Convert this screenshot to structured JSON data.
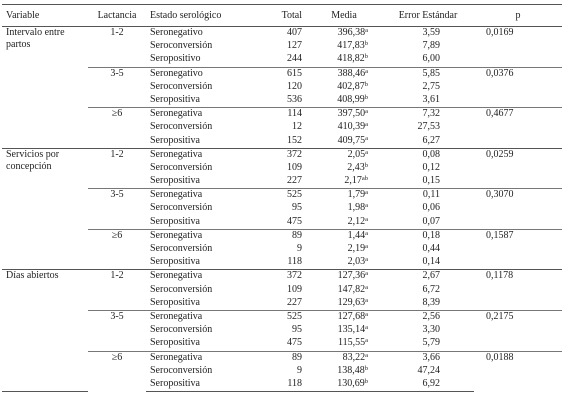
{
  "header": [
    "Variable",
    "Lactancia",
    "Estado serológico",
    "Total",
    "Media",
    "Error Estándar",
    "p"
  ],
  "groups": [
    {
      "variable": "Intervalo entre partos",
      "blocks": [
        {
          "lactancia": "1-2",
          "p": "0,0169",
          "rows": [
            {
              "estado": "Seronegativo",
              "total": 407,
              "media": "396,38",
              "sup": "a",
              "error": "3,59"
            },
            {
              "estado": "Seroconversión",
              "total": 127,
              "media": "417,83",
              "sup": "b",
              "error": "7,89"
            },
            {
              "estado": "Seropositivo",
              "total": 244,
              "media": "418,82",
              "sup": "b",
              "error": "6,00"
            }
          ]
        },
        {
          "lactancia": "3-5",
          "p": "0,0376",
          "rows": [
            {
              "estado": "Seronegativo",
              "total": 615,
              "media": "388,46",
              "sup": "a",
              "error": "5,85"
            },
            {
              "estado": "Seroconversión",
              "total": 120,
              "media": "402,87",
              "sup": "b",
              "error": "2,75"
            },
            {
              "estado": "Seropositiva",
              "total": 536,
              "media": "408,99",
              "sup": "b",
              "error": "3,61"
            }
          ]
        },
        {
          "lactancia": "≥6",
          "p": "0,4677",
          "rows": [
            {
              "estado": "Seronegativa",
              "total": 114,
              "media": "397,50",
              "sup": "a",
              "error": "7,32"
            },
            {
              "estado": "Seroconversión",
              "total": 12,
              "media": "410,39",
              "sup": "a",
              "error": "27,53"
            },
            {
              "estado": "Seropositiva",
              "total": 152,
              "media": "409,75",
              "sup": "a",
              "error": "6,27"
            }
          ]
        }
      ]
    },
    {
      "variable": "Servicios por concepción",
      "blocks": [
        {
          "lactancia": "1-2",
          "p": "0,0259",
          "rows": [
            {
              "estado": "Seronegativa",
              "total": 372,
              "media": "2,05",
              "sup": "a",
              "error": "0,08"
            },
            {
              "estado": "Seroconversión",
              "total": 109,
              "media": "2,43",
              "sup": "b",
              "error": "0,12"
            },
            {
              "estado": "Seropositiva",
              "total": 227,
              "media": "2,17",
              "sup": "ab",
              "error": "0,15"
            }
          ]
        },
        {
          "lactancia": "3-5",
          "p": "0,3070",
          "rows": [
            {
              "estado": "Seronegativa",
              "total": 525,
              "media": "1,79",
              "sup": "a",
              "error": "0,11"
            },
            {
              "estado": "Seroconversión",
              "total": 95,
              "media": "1,98",
              "sup": "a",
              "error": "0,06"
            },
            {
              "estado": "Seropositiva",
              "total": 475,
              "media": "2,12",
              "sup": "a",
              "error": "0,07"
            }
          ]
        },
        {
          "lactancia": "≥6",
          "p": "0,1587",
          "rows": [
            {
              "estado": "Seronegativa",
              "total": 89,
              "media": "1,44",
              "sup": "a",
              "error": "0,18"
            },
            {
              "estado": "Seroconversión",
              "total": 9,
              "media": "2,19",
              "sup": "a",
              "error": "0,44"
            },
            {
              "estado": "Seropositiva",
              "total": 118,
              "media": "2,03",
              "sup": "a",
              "error": "0,14"
            }
          ]
        }
      ]
    },
    {
      "variable": "Días abiertos",
      "blocks": [
        {
          "lactancia": "1-2",
          "p": "0,1178",
          "rows": [
            {
              "estado": "Seronegativa",
              "total": 372,
              "media": "127,36",
              "sup": "a",
              "error": "2,67"
            },
            {
              "estado": "Seroconversión",
              "total": 109,
              "media": "147,82",
              "sup": "a",
              "error": "6,72"
            },
            {
              "estado": "Seropositiva",
              "total": 227,
              "media": "129,63",
              "sup": "a",
              "error": "8,39"
            }
          ]
        },
        {
          "lactancia": "3-5",
          "p": "0,2175",
          "rows": [
            {
              "estado": "Seronegativa",
              "total": 525,
              "media": "127,68",
              "sup": "a",
              "error": "2,56"
            },
            {
              "estado": "Seroconversión",
              "total": 95,
              "media": "135,14",
              "sup": "a",
              "error": "3,30"
            },
            {
              "estado": "Seropositiva",
              "total": 475,
              "media": "115,55",
              "sup": "a",
              "error": "5,79"
            }
          ]
        },
        {
          "lactancia": "≥6",
          "p": "0,0188",
          "rows": [
            {
              "estado": "Seronegativa",
              "total": 89,
              "media": "83,22",
              "sup": "a",
              "error": "3,66"
            },
            {
              "estado": "Seroconversión",
              "total": 9,
              "media": "138,48",
              "sup": "b",
              "error": "47,24"
            },
            {
              "estado": "Seropositiva",
              "total": 118,
              "media": "130,69",
              "sup": "b",
              "error": "6,92"
            }
          ]
        }
      ]
    }
  ]
}
